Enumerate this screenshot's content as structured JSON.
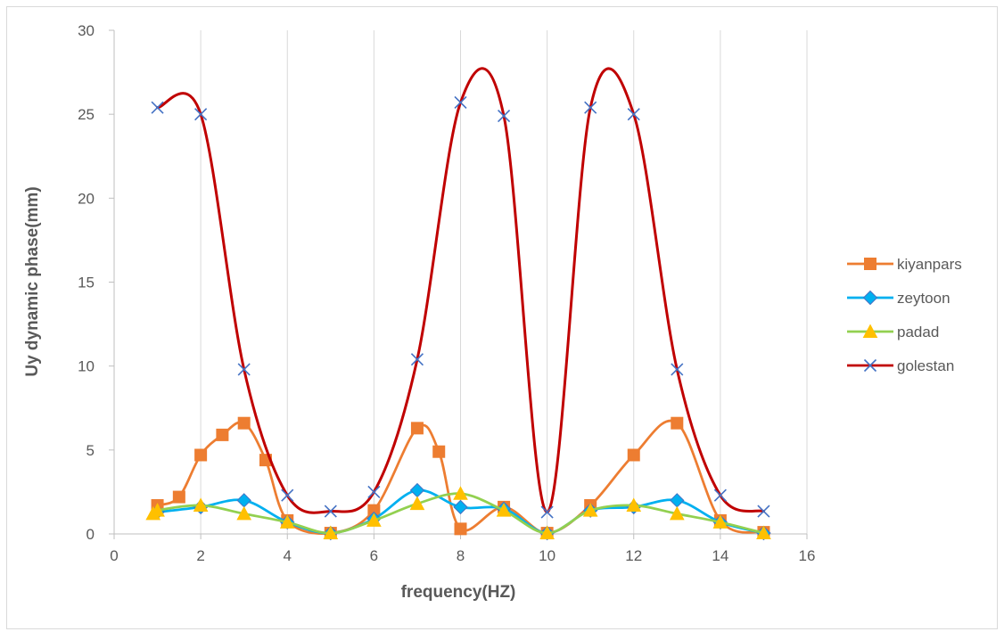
{
  "chart_data": {
    "type": "scatter",
    "title": "",
    "xlabel": "frequency(HZ)",
    "ylabel": "Uy dynamic phase(mm)",
    "xlim": [
      0,
      16
    ],
    "ylim": [
      0,
      30
    ],
    "xticks": [
      0,
      2,
      4,
      6,
      8,
      10,
      12,
      14,
      16
    ],
    "yticks": [
      0,
      5,
      10,
      15,
      20,
      25,
      30
    ],
    "grid": "vertical",
    "legend": "right",
    "smooth_lines": true,
    "series": [
      {
        "name": "kiyanpars",
        "color": "#ED7D31",
        "marker": "square",
        "x": [
          1,
          1.5,
          2,
          2.5,
          3,
          3.5,
          4,
          5,
          6,
          7,
          7.5,
          8,
          9,
          10,
          11,
          12,
          13,
          14,
          15
        ],
        "y": [
          1.7,
          2.2,
          4.7,
          5.9,
          6.6,
          4.4,
          0.8,
          0.05,
          1.4,
          6.3,
          4.9,
          0.3,
          1.6,
          0.05,
          1.7,
          4.7,
          6.6,
          0.8,
          0.1
        ]
      },
      {
        "name": "zeytoon",
        "color": "#00B0F0",
        "marker": "diamond",
        "x": [
          1,
          2,
          3,
          4,
          5,
          6,
          7,
          8,
          9,
          10,
          11,
          12,
          13,
          14,
          15
        ],
        "y": [
          1.3,
          1.6,
          2.0,
          0.7,
          0.05,
          0.9,
          2.6,
          1.6,
          1.5,
          0.05,
          1.4,
          1.6,
          2.0,
          0.7,
          0.05
        ]
      },
      {
        "name": "padad",
        "color": "#92D050",
        "marker": "triangle",
        "x": [
          0.9,
          1,
          2,
          3,
          4,
          5,
          6,
          7,
          8,
          9,
          10,
          11,
          12,
          13,
          14,
          15
        ],
        "y": [
          1.2,
          1.4,
          1.7,
          1.2,
          0.7,
          0.05,
          0.8,
          1.8,
          2.4,
          1.4,
          0.05,
          1.4,
          1.7,
          1.2,
          0.7,
          0.05
        ]
      },
      {
        "name": "golestan",
        "color": "#C00000",
        "marker": "x",
        "x": [
          1,
          2,
          3,
          4,
          5,
          6,
          7,
          8,
          9,
          10,
          11,
          12,
          13,
          14,
          15
        ],
        "y": [
          25.4,
          25.0,
          9.8,
          2.3,
          1.35,
          2.5,
          10.4,
          25.7,
          24.9,
          1.3,
          25.4,
          25.0,
          9.8,
          2.3,
          1.35
        ]
      }
    ]
  }
}
